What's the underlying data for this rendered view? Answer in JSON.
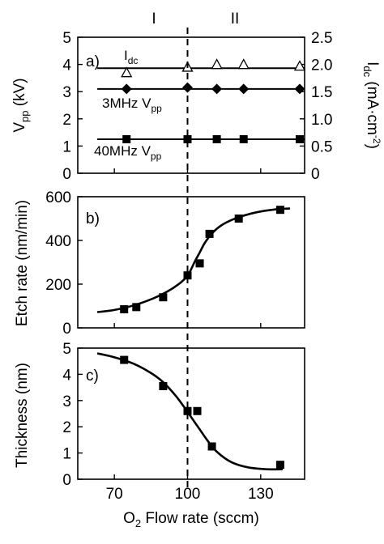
{
  "regions": [
    "I",
    "II"
  ],
  "divider_x": 100,
  "x_axis": {
    "label_pre": "O",
    "label_sub": "2",
    "label_post": " Flow rate (sccm)",
    "ticks": [
      70,
      100,
      130
    ],
    "range": [
      55,
      148
    ]
  },
  "chart_data": [
    {
      "panel": "a)",
      "type": "scatter",
      "ylabel": {
        "main": "V",
        "sub": "pp",
        "unit": " (kV)"
      },
      "ylim": [
        0,
        5
      ],
      "yticks": [
        0,
        1,
        2,
        3,
        4,
        5
      ],
      "y2label": {
        "main": "I",
        "sub": "dc",
        "unit": " (mA·cm",
        "sup": "-2",
        "close": ")"
      },
      "y2lim": [
        0,
        2.5
      ],
      "y2ticks": [
        "0",
        "0.5",
        "1.0",
        "1.5",
        "2.0",
        "2.5"
      ],
      "series": [
        {
          "name": "I",
          "name_sub": "dc",
          "marker": "open-triangle",
          "axis": "right",
          "x": [
            75,
            100,
            112,
            123,
            146
          ],
          "y": [
            1.85,
            1.95,
            2.0,
            2.0,
            1.97
          ],
          "line": 1.93
        },
        {
          "name": "3MHz V",
          "name_sub": "pp",
          "marker": "diamond",
          "axis": "left",
          "x": [
            75,
            100,
            112,
            123,
            146
          ],
          "y": [
            3.1,
            3.15,
            3.1,
            3.1,
            3.1
          ],
          "line": 3.1
        },
        {
          "name": "40MHz V",
          "name_sub": "pp",
          "marker": "square",
          "axis": "left",
          "x": [
            75,
            100,
            112,
            123,
            146
          ],
          "y": [
            1.25,
            1.25,
            1.25,
            1.25,
            1.25
          ],
          "line": 1.25
        }
      ]
    },
    {
      "panel": "b)",
      "type": "scatter",
      "ylabel": "Etch rate (nm/min)",
      "ylim": [
        0,
        600
      ],
      "yticks": [
        0,
        200,
        400,
        600
      ],
      "series": [
        {
          "marker": "square",
          "x": [
            74,
            79,
            90,
            100,
            105,
            109,
            121,
            138
          ],
          "y": [
            85,
            95,
            140,
            240,
            295,
            430,
            500,
            540
          ],
          "fit_x": [
            63,
            70,
            78,
            86,
            92,
            96,
            99,
            101,
            103,
            105,
            107,
            110,
            114,
            120,
            128,
            136,
            142
          ],
          "fit_y": [
            72,
            82,
            103,
            135,
            168,
            197,
            226,
            258,
            304,
            345,
            387,
            432,
            470,
            502,
            528,
            542,
            546
          ]
        }
      ]
    },
    {
      "panel": "c)",
      "type": "scatter",
      "ylabel": "Thickness (nm)",
      "ylim": [
        0,
        5
      ],
      "yticks": [
        0,
        1,
        2,
        3,
        4,
        5
      ],
      "series": [
        {
          "marker": "square",
          "x": [
            74,
            90,
            100,
            104,
            110,
            138
          ],
          "y": [
            4.55,
            3.55,
            2.6,
            2.6,
            1.25,
            0.55
          ],
          "fit_x": [
            63,
            70,
            78,
            85,
            90,
            95,
            99,
            102,
            105,
            108,
            112,
            118,
            125,
            133,
            139
          ],
          "fit_y": [
            4.8,
            4.65,
            4.4,
            4.05,
            3.7,
            3.2,
            2.7,
            2.3,
            1.9,
            1.5,
            1.05,
            0.65,
            0.45,
            0.38,
            0.38
          ]
        }
      ]
    }
  ]
}
